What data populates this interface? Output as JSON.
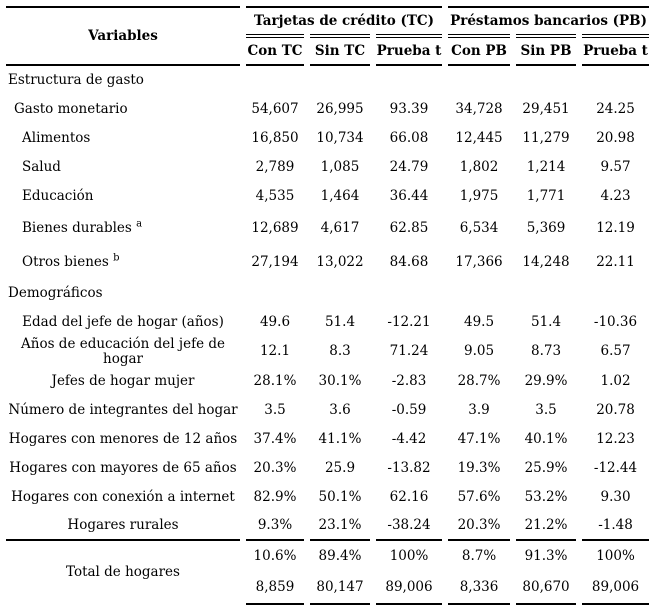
{
  "colors": {
    "background": "#ffffff",
    "text": "#000000",
    "rule": "#000000"
  },
  "table": {
    "header": {
      "variables_label": "Variables",
      "groups": [
        {
          "label": "Tarjetas de crédito (TC)",
          "columns": [
            "Con TC",
            "Sin TC",
            "Prueba t"
          ]
        },
        {
          "label": "Préstamos bancarios (PB)",
          "columns": [
            "Con PB",
            "Sin PB",
            "Prueba t"
          ]
        }
      ]
    },
    "rows": [
      {
        "type": "section",
        "label": "Estructura de gasto"
      },
      {
        "label": "Gasto monetario",
        "indent": 1,
        "align": "left",
        "values": [
          "54,607",
          "26,995",
          "93.39",
          "34,728",
          "29,451",
          "24.25"
        ]
      },
      {
        "label": "Alimentos",
        "indent": 2,
        "align": "left",
        "values": [
          "16,850",
          "10,734",
          "66.08",
          "12,445",
          "11,279",
          "20.98"
        ]
      },
      {
        "label": "Salud",
        "indent": 2,
        "align": "left",
        "values": [
          "2,789",
          "1,085",
          "24.79",
          "1,802",
          "1,214",
          "9.57"
        ]
      },
      {
        "label": "Educación",
        "indent": 2,
        "align": "left",
        "values": [
          "4,535",
          "1,464",
          "36.44",
          "1,975",
          "1,771",
          "4.23"
        ]
      },
      {
        "label": "Bienes durables",
        "sup": "a",
        "indent": 2,
        "align": "left",
        "values": [
          "12,689",
          "4,617",
          "62.85",
          "6,534",
          "5,369",
          "12.19"
        ]
      },
      {
        "label": "Otros bienes",
        "sup": "b",
        "indent": 2,
        "align": "left",
        "values": [
          "27,194",
          "13,022",
          "84.68",
          "17,366",
          "14,248",
          "22.11"
        ]
      },
      {
        "type": "section",
        "label": "Demográficos"
      },
      {
        "label": "Edad del jefe de hogar (años)",
        "align": "center",
        "values": [
          "49.6",
          "51.4",
          "-12.21",
          "49.5",
          "51.4",
          "-10.36"
        ]
      },
      {
        "label": "Años de educación del jefe de hogar",
        "align": "center",
        "values": [
          "12.1",
          "8.3",
          "71.24",
          "9.05",
          "8.73",
          "6.57"
        ]
      },
      {
        "label": "Jefes de hogar mujer",
        "align": "center",
        "values": [
          "28.1%",
          "30.1%",
          "-2.83",
          "28.7%",
          "29.9%",
          "1.02"
        ]
      },
      {
        "label": "Número de integrantes del hogar",
        "align": "center",
        "values": [
          "3.5",
          "3.6",
          "-0.59",
          "3.9",
          "3.5",
          "20.78"
        ]
      },
      {
        "label": "Hogares con menores de 12 años",
        "align": "center",
        "values": [
          "37.4%",
          "41.1%",
          "-4.42",
          "47.1%",
          "40.1%",
          "12.23"
        ]
      },
      {
        "label": "Hogares con mayores de 65 años",
        "align": "center",
        "values": [
          "20.3%",
          "25.9",
          "-13.82",
          "19.3%",
          "25.9%",
          "-12.44"
        ]
      },
      {
        "label": "Hogares con conexión a internet",
        "align": "center",
        "values": [
          "82.9%",
          "50.1%",
          "62.16",
          "57.6%",
          "53.2%",
          "9.30"
        ]
      },
      {
        "label": "Hogares rurales",
        "align": "center",
        "rule_below": true,
        "values": [
          "9.3%",
          "23.1%",
          "-38.24",
          "20.3%",
          "21.2%",
          "-1.48"
        ]
      }
    ],
    "totals": {
      "label": "Total de hogares",
      "rows": [
        [
          "10.6%",
          "89.4%",
          "100%",
          "8.7%",
          "91.3%",
          "100%"
        ],
        [
          "8,859",
          "80,147",
          "89,006",
          "8,336",
          "80,670",
          "89,006"
        ]
      ]
    }
  }
}
